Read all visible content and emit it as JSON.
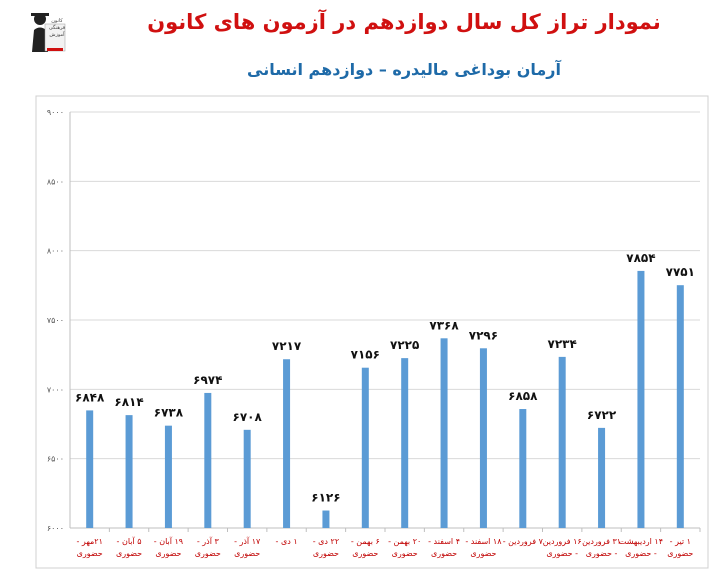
{
  "page": {
    "title": "نمودار تراز کل سال دوازدهم در آزمون های کانون",
    "subtitle": "آرمان بوداغی مالیدره – دوازدهم انسانی",
    "logo_text": "کانون فرهنگی آموزش"
  },
  "colors": {
    "bar": "#5b9bd5",
    "title": "#d01010",
    "subtitle": "#1e6aa8",
    "axis_text": "#555555",
    "tick_label": "#c00000"
  },
  "chart_data": {
    "type": "bar",
    "title": "نمودار تراز کل سال دوازدهم در آزمون های کانون",
    "subtitle": "آرمان بوداغی مالیدره – دوازدهم انسانی",
    "categories": [
      [
        "۲۱مهر -",
        "حضوری"
      ],
      [
        "۵ آبان -",
        "حضوری"
      ],
      [
        "۱۹ آبان -",
        "حضوری"
      ],
      [
        "۳ آذر -",
        "حضوری"
      ],
      [
        "۱۷ آذر -",
        "حضوری"
      ],
      [
        "۱ دی -"
      ],
      [
        "۲۲ دی -",
        "حضوری"
      ],
      [
        "۶ بهمن -",
        "حضوری"
      ],
      [
        "۲۰ بهمن -",
        "حضوری"
      ],
      [
        "۴ اسفند -",
        "حضوری"
      ],
      [
        "۱۸ اسفند -",
        "حضوری"
      ],
      [
        "۷ فروردین -"
      ],
      [
        "۱۶ فروردین",
        "- حضوری"
      ],
      [
        "۳۱ فروردین",
        "- حضوری"
      ],
      [
        "۱۴ اردیبهشت",
        "- حضوری"
      ],
      [
        "۱ تیر -",
        "حضوری"
      ]
    ],
    "values": [
      6848,
      6814,
      6738,
      6974,
      6708,
      7217,
      6126,
      7156,
      7225,
      7368,
      7296,
      6858,
      7234,
      6722,
      7854,
      7751
    ],
    "value_labels": [
      "۶۸۴۸",
      "۶۸۱۴",
      "۶۷۳۸",
      "۶۹۷۴",
      "۶۷۰۸",
      "۷۲۱۷",
      "۶۱۲۶",
      "۷۱۵۶",
      "۷۲۲۵",
      "۷۳۶۸",
      "۷۲۹۶",
      "۶۸۵۸",
      "۷۲۳۴",
      "۶۷۲۲",
      "۷۸۵۴",
      "۷۷۵۱"
    ],
    "ylim": [
      6000,
      9000
    ],
    "yticks": [
      6000,
      6500,
      7000,
      7500,
      8000,
      8500,
      9000
    ],
    "ytick_labels": [
      "۶۰۰۰",
      "۶۵۰۰",
      "۷۰۰۰",
      "۷۵۰۰",
      "۸۰۰۰",
      "۸۵۰۰",
      "۹۰۰۰"
    ],
    "grid": "horizontal",
    "legend": "none"
  }
}
